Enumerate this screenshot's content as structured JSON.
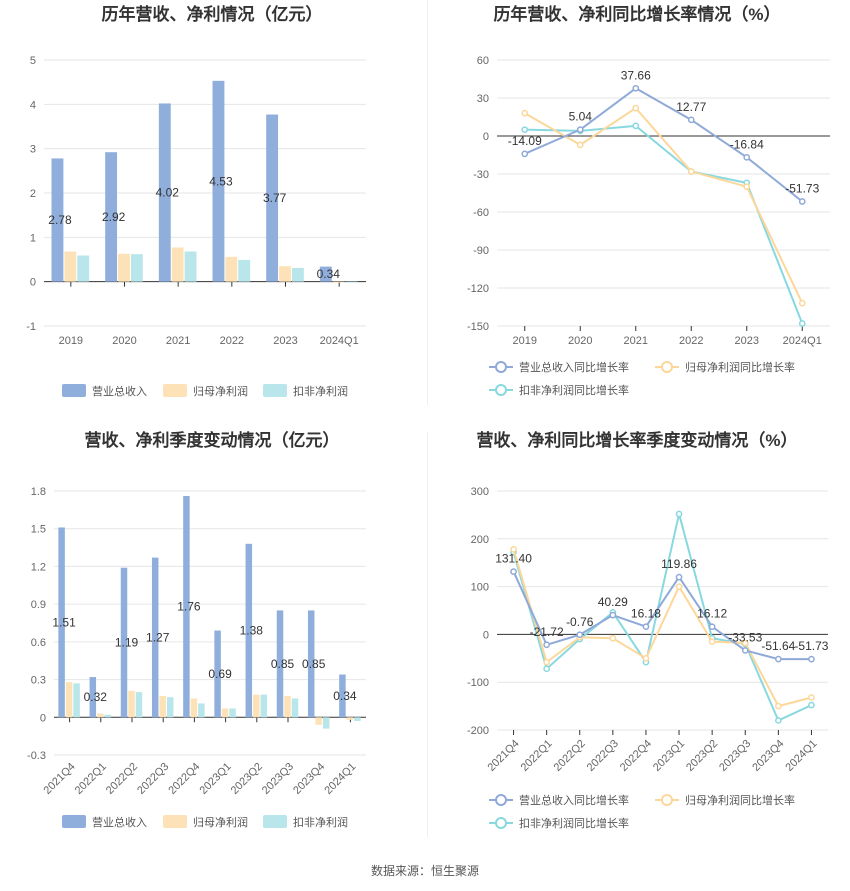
{
  "source": "数据来源：恒生聚源",
  "colors": {
    "revenue": "#8faedb",
    "net_profit": "#fde2b7",
    "deducted_profit": "#b8e6ea",
    "revenue_line": "#8fa9d8",
    "net_profit_line": "#fdd79a",
    "deducted_line": "#88d8df",
    "grid": "#e6e6e6",
    "axis": "#333333"
  },
  "chart_data": [
    {
      "id": "annual_amount",
      "type": "bar",
      "title": "历年营收、净利情况（亿元）",
      "categories": [
        "2019",
        "2020",
        "2021",
        "2022",
        "2023",
        "2024Q1"
      ],
      "series": [
        {
          "name": "营业总收入",
          "values": [
            2.78,
            2.92,
            4.02,
            4.53,
            3.77,
            0.34
          ]
        },
        {
          "name": "归母净利润",
          "values": [
            0.68,
            0.63,
            0.77,
            0.56,
            0.35,
            -0.02
          ]
        },
        {
          "name": "扣非净利润",
          "values": [
            0.59,
            0.62,
            0.68,
            0.49,
            0.31,
            -0.02
          ]
        }
      ],
      "labels_series": 0,
      "labels": [
        "2.78",
        "2.92",
        "4.02",
        "4.53",
        "3.77",
        "0.34"
      ],
      "ylim": [
        -1,
        5
      ],
      "yticks": [
        "-1",
        "0",
        "1",
        "2",
        "3",
        "4",
        "5"
      ],
      "legend": [
        "营业总收入",
        "归母净利润",
        "扣非净利润"
      ]
    },
    {
      "id": "annual_growth",
      "type": "line",
      "title": "历年营收、净利同比增长率情况（%）",
      "categories": [
        "2019",
        "2020",
        "2021",
        "2022",
        "2023",
        "2024Q1"
      ],
      "series": [
        {
          "name": "营业总收入同比增长率",
          "values": [
            -14.09,
            5.04,
            37.66,
            12.77,
            -16.84,
            -51.73
          ]
        },
        {
          "name": "归母净利润同比增长率",
          "values": [
            18,
            -7,
            22,
            -28,
            -40,
            -132
          ]
        },
        {
          "name": "扣非净利润同比增长率",
          "values": [
            5,
            4,
            8,
            -28,
            -37,
            -148
          ]
        }
      ],
      "labels_series": 0,
      "labels": [
        "-14.09",
        "5.04",
        "37.66",
        "12.77",
        "-16.84",
        "-51.73"
      ],
      "ylim": [
        -150,
        60
      ],
      "yticks": [
        "60",
        "30",
        "0",
        "-30",
        "-60",
        "-90",
        "-120",
        "-150"
      ],
      "legend": [
        "营业总收入同比增长率",
        "归母净利润同比增长率",
        "扣非净利润同比增长率"
      ]
    },
    {
      "id": "quarterly_amount",
      "type": "bar",
      "title": "营收、净利季度变动情况（亿元）",
      "categories": [
        "2021Q4",
        "2022Q1",
        "2022Q2",
        "2022Q3",
        "2022Q4",
        "2023Q1",
        "2023Q2",
        "2023Q3",
        "2023Q4",
        "2024Q1"
      ],
      "series": [
        {
          "name": "营业总收入",
          "values": [
            1.51,
            0.32,
            1.19,
            1.27,
            1.76,
            0.69,
            1.38,
            0.85,
            0.85,
            0.34
          ]
        },
        {
          "name": "归母净利润",
          "values": [
            0.28,
            0.03,
            0.21,
            0.17,
            0.15,
            0.07,
            0.18,
            0.17,
            -0.06,
            -0.02
          ]
        },
        {
          "name": "扣非净利润",
          "values": [
            0.27,
            0.02,
            0.2,
            0.16,
            0.11,
            0.07,
            0.18,
            0.15,
            -0.09,
            -0.03
          ]
        }
      ],
      "labels_series": 0,
      "labels": [
        "1.51",
        "0.32",
        "1.19",
        "1.27",
        "1.76",
        "0.69",
        "1.38",
        "0.85",
        "0.85",
        "0.34"
      ],
      "ylim": [
        -0.3,
        1.8
      ],
      "yticks": [
        "-0.3",
        "0",
        "0.3",
        "0.6",
        "0.9",
        "1.2",
        "1.5",
        "1.8"
      ],
      "legend": [
        "营业总收入",
        "归母净利润",
        "扣非净利润"
      ]
    },
    {
      "id": "quarterly_growth",
      "type": "line",
      "title": "营收、净利同比增长率季度变动情况（%）",
      "categories": [
        "2021Q4",
        "2022Q1",
        "2022Q2",
        "2022Q3",
        "2022Q4",
        "2023Q1",
        "2023Q2",
        "2023Q3",
        "2023Q4",
        "2024Q1"
      ],
      "series": [
        {
          "name": "营业总收入同比增长率",
          "values": [
            131.4,
            -21.72,
            -0.76,
            40.29,
            16.18,
            119.86,
            16.12,
            -33.53,
            -51.64,
            -51.73
          ]
        },
        {
          "name": "归母净利润同比增长率",
          "values": [
            178,
            -58,
            -6,
            -8,
            -50,
            100,
            -15,
            -18,
            -150,
            -132
          ]
        },
        {
          "name": "扣非净利润同比增长率",
          "values": [
            172,
            -72,
            -10,
            46,
            -58,
            252,
            -8,
            -20,
            -180,
            -148
          ]
        }
      ],
      "labels_series": 0,
      "labels": [
        "131.40",
        "-21.72",
        "-0.76",
        "40.29",
        "16.18",
        "119.86",
        "16.12",
        "-33.53",
        "-51.64",
        "-51.73"
      ],
      "ylim": [
        -200,
        300
      ],
      "yticks": [
        "300",
        "200",
        "100",
        "0",
        "-100",
        "-200"
      ],
      "legend": [
        "营业总收入同比增长率",
        "归母净利润同比增长率",
        "扣非净利润同比增长率"
      ]
    }
  ]
}
